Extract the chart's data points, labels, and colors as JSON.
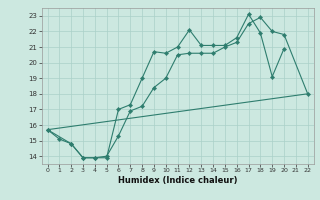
{
  "title": "",
  "xlabel": "Humidex (Indice chaleur)",
  "bg_color": "#cce8e0",
  "grid_color": "#aad0c8",
  "line_color": "#2e7d6e",
  "xlim": [
    -0.5,
    22.5
  ],
  "ylim": [
    13.5,
    23.5
  ],
  "xticks": [
    0,
    1,
    2,
    3,
    4,
    5,
    6,
    7,
    8,
    9,
    10,
    11,
    12,
    13,
    14,
    15,
    16,
    17,
    18,
    19,
    20,
    21,
    22
  ],
  "yticks": [
    14,
    15,
    16,
    17,
    18,
    19,
    20,
    21,
    22,
    23
  ],
  "line1_x": [
    0,
    1,
    2,
    3,
    4,
    5,
    6,
    7,
    8,
    9,
    10,
    11,
    12,
    13,
    14,
    15,
    16,
    17,
    18,
    19,
    20
  ],
  "line1_y": [
    15.7,
    15.1,
    14.8,
    13.9,
    13.9,
    13.9,
    17.0,
    17.3,
    19.0,
    20.7,
    20.6,
    21.0,
    22.1,
    21.1,
    21.1,
    21.1,
    21.6,
    23.1,
    21.9,
    19.1,
    20.9
  ],
  "line2_x": [
    0,
    2,
    3,
    4,
    5,
    6,
    7,
    8,
    9,
    10,
    11,
    12,
    13,
    14,
    15,
    16,
    17,
    18,
    19,
    20,
    22
  ],
  "line2_y": [
    15.7,
    14.8,
    13.9,
    13.9,
    14.0,
    15.3,
    16.9,
    17.2,
    18.4,
    19.0,
    20.5,
    20.6,
    20.6,
    20.6,
    21.0,
    21.3,
    22.5,
    22.9,
    22.0,
    21.8,
    18.0
  ],
  "line3_x": [
    0,
    22
  ],
  "line3_y": [
    15.7,
    18.0
  ],
  "marker_size": 2.2,
  "linewidth": 0.8
}
